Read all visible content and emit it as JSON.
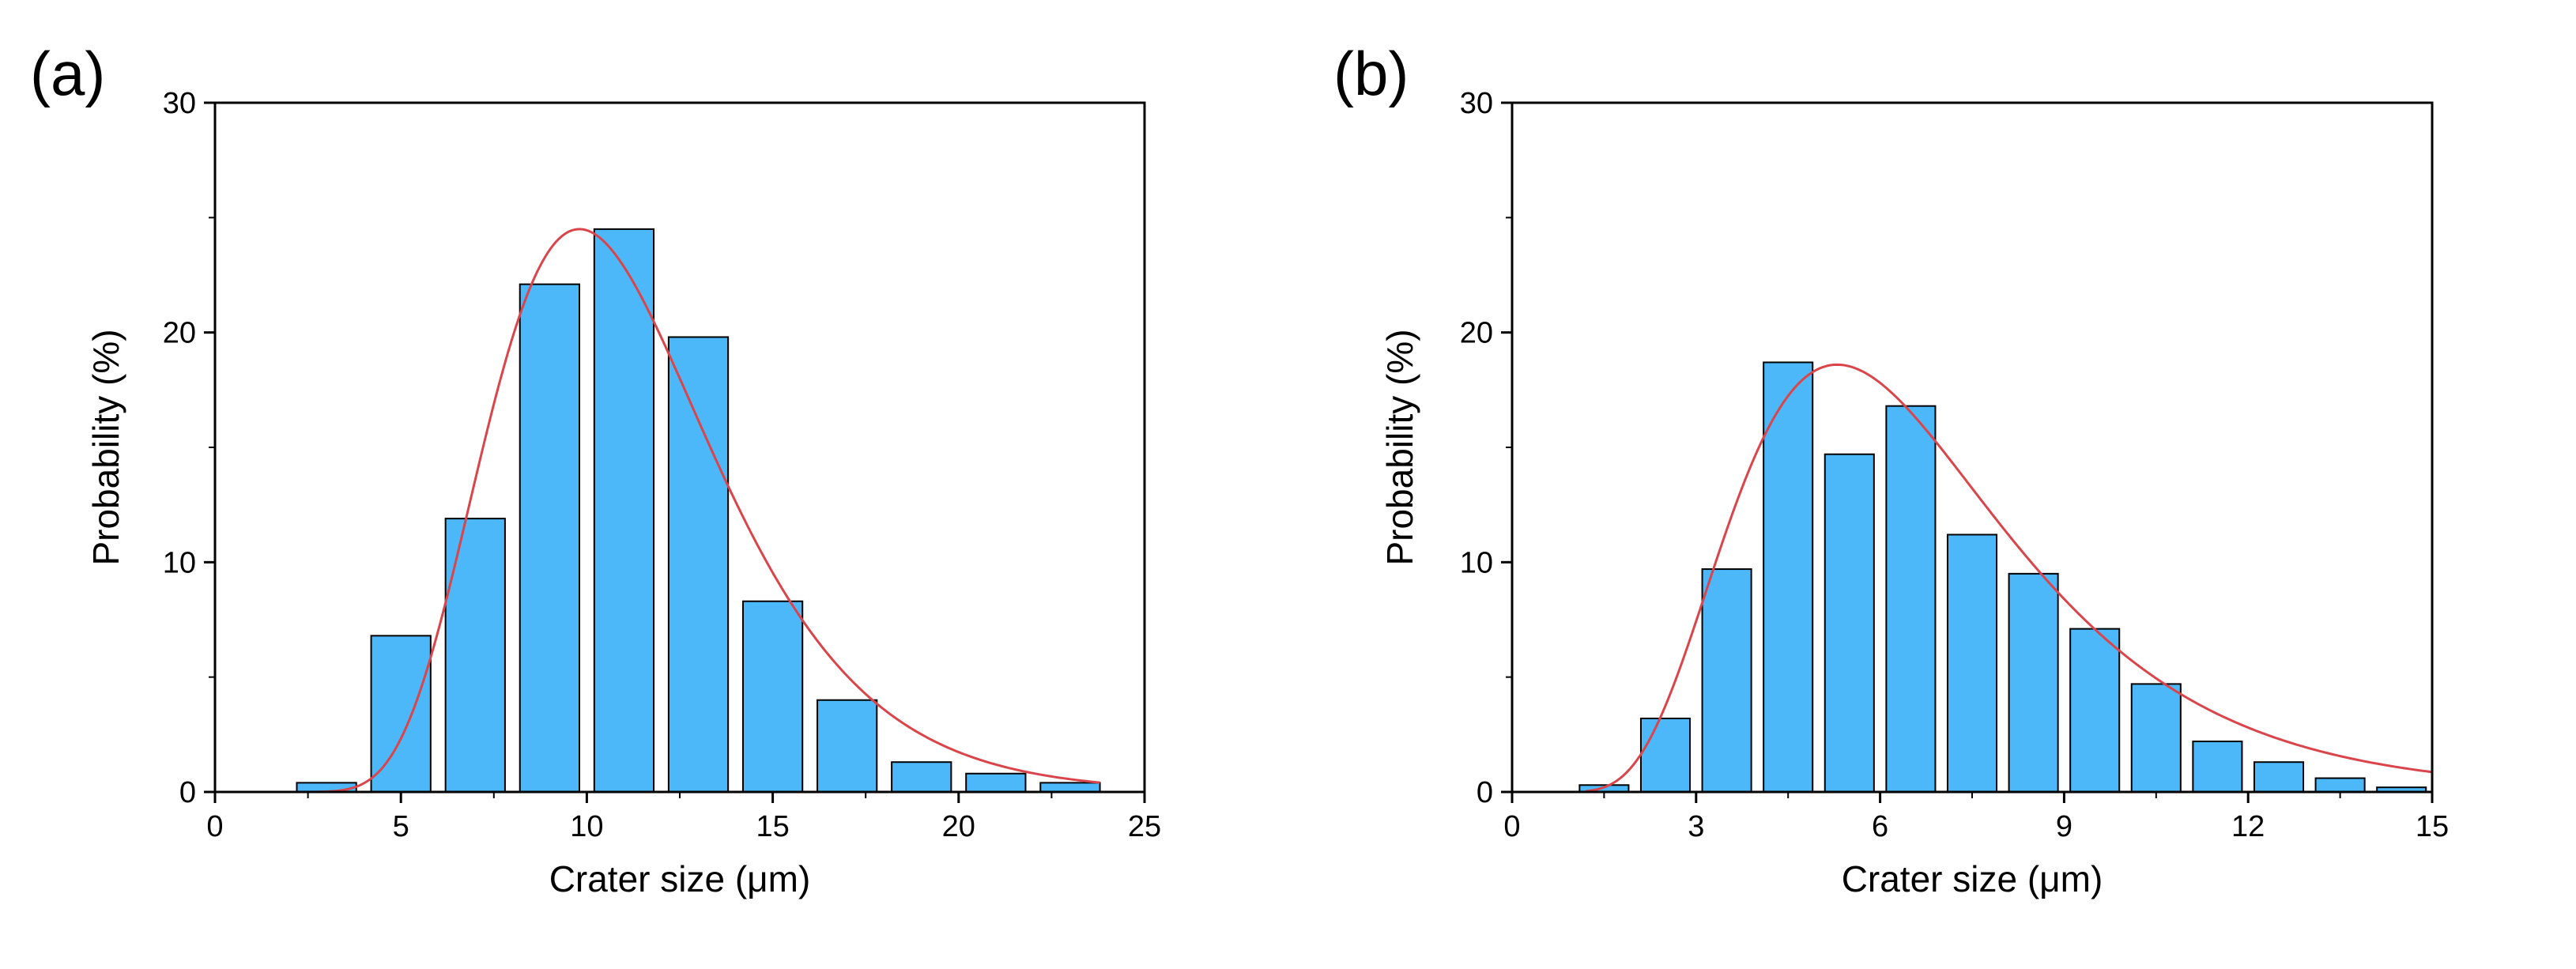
{
  "chart_data": [
    {
      "type": "bar",
      "panel_label": "(a)",
      "xlabel": "Crater size (μm)",
      "ylabel": "Probability (%)",
      "xlim": [
        0,
        25
      ],
      "ylim": [
        0,
        30
      ],
      "xticks": [
        0,
        5,
        10,
        15,
        20,
        25
      ],
      "yticks": [
        0,
        10,
        20,
        30
      ],
      "bin_width": 2,
      "series": [
        {
          "name": "histogram",
          "x": [
            3,
            5,
            7,
            9,
            11,
            13,
            15,
            17,
            19,
            21,
            23
          ],
          "values": [
            0.4,
            6.8,
            11.9,
            22.1,
            24.5,
            19.8,
            8.3,
            4.0,
            1.3,
            0.8,
            0.4
          ]
        }
      ],
      "fit": {
        "type": "lognormal",
        "peak_x": 9.8,
        "peak_y": 24.5,
        "sigma": 0.31,
        "x_range": [
          2.4,
          23.8
        ]
      },
      "colors": {
        "bar": "#4DB8F9",
        "edge": "#000000",
        "fit": "#D9454A"
      }
    },
    {
      "type": "bar",
      "panel_label": "(b)",
      "xlabel": "Crater size (μm)",
      "ylabel": "Probability (%)",
      "xlim": [
        0,
        15
      ],
      "ylim": [
        0,
        30
      ],
      "xticks": [
        0,
        3,
        6,
        9,
        12,
        15
      ],
      "yticks": [
        0,
        10,
        20,
        30
      ],
      "bin_width": 1,
      "series": [
        {
          "name": "histogram",
          "x": [
            1.5,
            2.5,
            3.5,
            4.5,
            5.5,
            6.5,
            7.5,
            8.5,
            9.5,
            10.5,
            11.5,
            12.5,
            13.5,
            14.5
          ],
          "values": [
            0.3,
            3.2,
            9.7,
            18.7,
            14.7,
            16.8,
            11.2,
            9.5,
            7.1,
            4.7,
            2.2,
            1.3,
            0.6,
            0.2
          ]
        }
      ],
      "fit": {
        "type": "lognormal",
        "peak_x": 5.3,
        "peak_y": 18.6,
        "sigma": 0.42,
        "x_range": [
          1.2,
          15
        ]
      },
      "colors": {
        "bar": "#4DB8F9",
        "edge": "#000000",
        "fit": "#D9454A"
      }
    }
  ]
}
